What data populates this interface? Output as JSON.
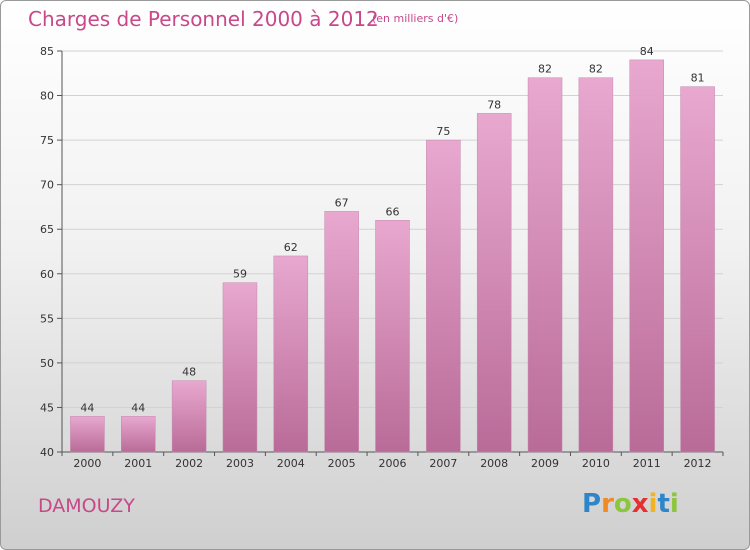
{
  "chart_data": {
    "type": "bar",
    "title": "Charges de Personnel 2000 à 2012",
    "subtitle": "(en milliers d'€)",
    "categories": [
      "2000",
      "2001",
      "2002",
      "2003",
      "2004",
      "2005",
      "2006",
      "2007",
      "2008",
      "2009",
      "2010",
      "2011",
      "2012"
    ],
    "values": [
      44,
      44,
      48,
      59,
      62,
      67,
      66,
      75,
      78,
      82,
      82,
      84,
      81
    ],
    "ylim": [
      40,
      85
    ],
    "yticks": [
      40,
      45,
      50,
      55,
      60,
      65,
      70,
      75,
      80,
      85
    ],
    "grid": true,
    "bar_color_top": "#e8a8cf",
    "bar_color_bottom": "#b96b98"
  },
  "footer": {
    "commune": "DAMOUZY",
    "logo_letters": [
      {
        "ch": "P",
        "color": "#2e86c8"
      },
      {
        "ch": "r",
        "color": "#f08a24"
      },
      {
        "ch": "o",
        "color": "#8cc63e"
      },
      {
        "ch": "x",
        "color": "#e5302f"
      },
      {
        "ch": "i",
        "color": "#f0b323"
      },
      {
        "ch": "t",
        "color": "#2e86c8"
      },
      {
        "ch": "i",
        "color": "#8cc63e"
      }
    ]
  }
}
